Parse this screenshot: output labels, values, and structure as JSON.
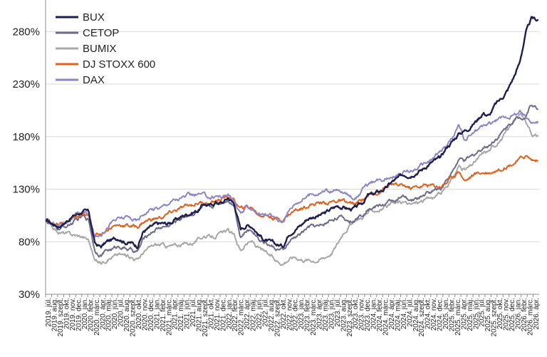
{
  "chart_data": {
    "type": "line",
    "title": "",
    "xlabel": "",
    "ylabel": "",
    "ylim": [
      30,
      310
    ],
    "y_ticks": [
      30,
      80,
      130,
      180,
      230,
      280
    ],
    "y_tick_labels": [
      "30%",
      "80%",
      "130%",
      "180%",
      "230%",
      "280%"
    ],
    "grid": "horizontal",
    "legend_position": "top-left",
    "x_tick_labels": [
      "2019. júl.",
      "2019. aug.",
      "2019. szept.",
      "2019. okt.",
      "2019. nov.",
      "2019. dec.",
      "2020. jan.",
      "2020. febr.",
      "2020. márc.",
      "2020. ápr.",
      "2020. máj.",
      "2020. jún.",
      "2020. júl.",
      "2020. aug.",
      "2020. szept.",
      "2020. okt.",
      "2020. nov.",
      "2020. dec.",
      "2021. jan.",
      "2021. febr.",
      "2021. márc.",
      "2021. ápr.",
      "2021. máj.",
      "2021. jún.",
      "2021. júl.",
      "2021. aug.",
      "2021. szept.",
      "2021. okt.",
      "2021. nov.",
      "2021. dec.",
      "2022. jan.",
      "2022. febr.",
      "2022. márc.",
      "2022. ápr.",
      "2022. máj.",
      "2022. jún.",
      "2022. júl.",
      "2022. aug.",
      "2022. szept.",
      "2022. okt.",
      "2022. nov.",
      "2022. dec.",
      "2023. jan.",
      "2023. febr.",
      "2023. márc.",
      "2023. ápr.",
      "2023. máj.",
      "2023. jún.",
      "2023. júl.",
      "2023. aug.",
      "2023. szept.",
      "2023. okt.",
      "2023. nov.",
      "2023. dec.",
      "2024. jan.",
      "2024. febr.",
      "2024. márc.",
      "2024. ápr.",
      "2024. máj.",
      "2024. jún.",
      "2024. júl.",
      "2024. aug.",
      "2024. szept.",
      "2024. okt.",
      "2024. nov.",
      "2024. dec.",
      "2025. jan.",
      "2025. febr.",
      "2025. márc.",
      "2025. ápr.",
      "2025. máj.",
      "2025. jún.",
      "2025. júl.",
      "2025. aug.",
      "2025. szept.",
      "2025. okt.",
      "2025. nov.",
      "2025. dec.",
      "2026. jan.",
      "2026. febr.",
      "2026. márc.",
      "2026. ápr."
    ],
    "series": [
      {
        "name": "BUX",
        "color": "#1f1f4f",
        "values": [
          100,
          97,
          95,
          98,
          103,
          106,
          109,
          108,
          78,
          75,
          80,
          82,
          84,
          80,
          79,
          76,
          90,
          93,
          96,
          97,
          97,
          100,
          103,
          106,
          108,
          110,
          116,
          114,
          118,
          117,
          122,
          116,
          92,
          96,
          95,
          87,
          82,
          79,
          77,
          76,
          88,
          93,
          96,
          102,
          104,
          105,
          107,
          111,
          114,
          113,
          111,
          112,
          116,
          124,
          125,
          128,
          131,
          137,
          140,
          144,
          144,
          147,
          149,
          154,
          157,
          159,
          170,
          176,
          183,
          186,
          190,
          196,
          203,
          200,
          210,
          216,
          224,
          236,
          250,
          278,
          292,
          291
        ]
      },
      {
        "name": "CETOP",
        "color": "#6e6c8c",
        "values": [
          100,
          95,
          92,
          94,
          97,
          100,
          104,
          101,
          72,
          68,
          72,
          73,
          76,
          74,
          72,
          70,
          82,
          88,
          92,
          94,
          95,
          98,
          102,
          105,
          107,
          109,
          113,
          112,
          116,
          118,
          121,
          115,
          85,
          90,
          91,
          84,
          80,
          76,
          73,
          71,
          79,
          84,
          88,
          93,
          95,
          94,
          97,
          101,
          104,
          102,
          100,
          101,
          106,
          112,
          113,
          115,
          116,
          119,
          121,
          122,
          118,
          121,
          124,
          127,
          129,
          131,
          140,
          147,
          158,
          157,
          160,
          165,
          170,
          172,
          178,
          183,
          190,
          196,
          198,
          200,
          212,
          206
        ]
      },
      {
        "name": "BUMIX",
        "color": "#a8a8a8",
        "values": [
          100,
          93,
          89,
          88,
          87,
          86,
          85,
          82,
          62,
          60,
          64,
          66,
          68,
          67,
          66,
          63,
          70,
          74,
          77,
          77,
          76,
          76,
          77,
          78,
          79,
          82,
          86,
          84,
          86,
          88,
          90,
          85,
          72,
          78,
          80,
          74,
          70,
          66,
          62,
          60,
          64,
          66,
          64,
          63,
          63,
          63,
          66,
          70,
          78,
          90,
          96,
          99,
          103,
          108,
          110,
          111,
          113,
          115,
          117,
          117,
          115,
          117,
          119,
          121,
          123,
          125,
          132,
          140,
          152,
          148,
          152,
          158,
          164,
          167,
          172,
          178,
          185,
          195,
          200,
          196,
          184,
          181
        ]
      },
      {
        "name": "DJ STOXX 600",
        "color": "#e2611f",
        "values": [
          100,
          98,
          96,
          98,
          101,
          103,
          105,
          103,
          86,
          88,
          92,
          95,
          96,
          96,
          95,
          94,
          99,
          101,
          102,
          103,
          106,
          109,
          111,
          113,
          115,
          117,
          118,
          116,
          119,
          121,
          123,
          119,
          111,
          113,
          112,
          106,
          106,
          104,
          102,
          101,
          106,
          110,
          112,
          115,
          116,
          117,
          117,
          118,
          119,
          118,
          116,
          115,
          120,
          124,
          126,
          128,
          132,
          134,
          133,
          133,
          131,
          132,
          133,
          134,
          133,
          133,
          137,
          142,
          148,
          138,
          142,
          145,
          146,
          146,
          148,
          150,
          153,
          155,
          158,
          162,
          158,
          157
        ]
      },
      {
        "name": "DAX",
        "color": "#8c86c6",
        "values": [
          100,
          97,
          96,
          99,
          102,
          105,
          108,
          106,
          84,
          88,
          94,
          100,
          102,
          103,
          102,
          100,
          107,
          110,
          112,
          113,
          117,
          120,
          121,
          123,
          124,
          125,
          124,
          122,
          124,
          123,
          125,
          118,
          105,
          112,
          112,
          106,
          105,
          105,
          101,
          100,
          110,
          117,
          120,
          124,
          126,
          127,
          129,
          128,
          128,
          126,
          124,
          122,
          129,
          134,
          136,
          138,
          141,
          143,
          144,
          146,
          147,
          150,
          153,
          156,
          160,
          166,
          172,
          180,
          190,
          176,
          182,
          186,
          190,
          192,
          195,
          197,
          199,
          200,
          204,
          198,
          196,
          194
        ]
      }
    ]
  }
}
